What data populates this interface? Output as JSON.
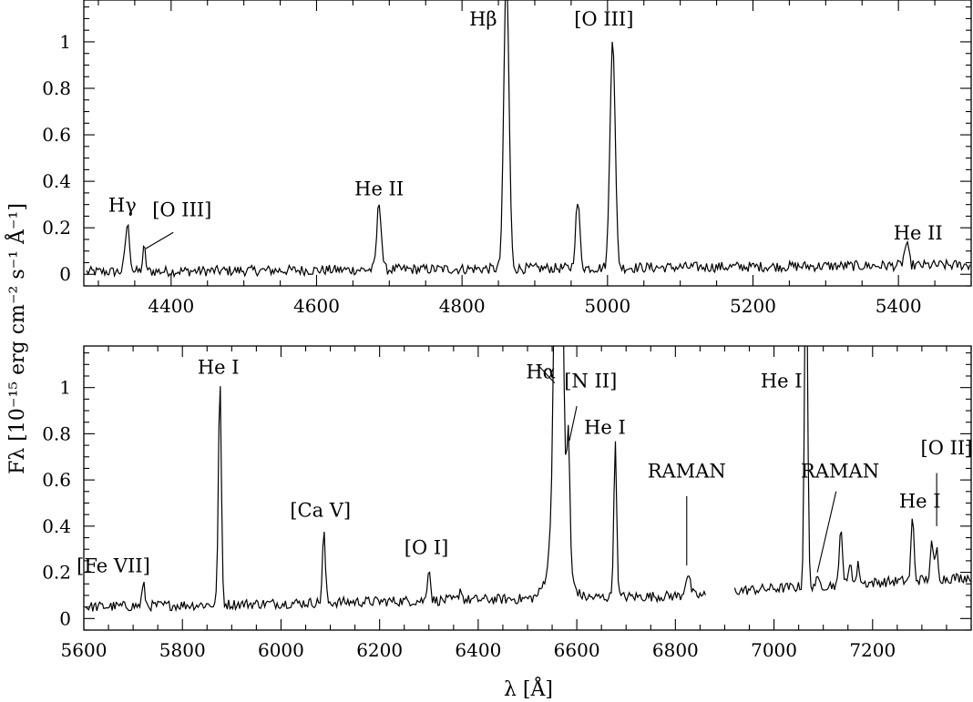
{
  "figure": {
    "ylabel": "Fλ [10⁻¹⁵ erg cm⁻² s⁻¹ Å⁻¹]",
    "xlabel": "λ [Å]"
  },
  "chart_data": [
    {
      "type": "line",
      "xlim": [
        4280,
        5500
      ],
      "ylim": [
        -0.05,
        1.18
      ],
      "x_ticks": [
        4400,
        4600,
        4800,
        5000,
        5200,
        5400
      ],
      "y_ticks": [
        0,
        0.2,
        0.4,
        0.6,
        0.8,
        1
      ],
      "x_tick_labels": [
        "4400",
        "4600",
        "4800",
        "5000",
        "5200",
        "5400"
      ],
      "y_tick_labels": [
        "0",
        "0.2",
        "0.4",
        "0.6",
        "0.8",
        "1"
      ],
      "continuum": {
        "x": [
          4280,
          5500
        ],
        "y": [
          0.01,
          0.04
        ]
      },
      "lines": [
        {
          "label": "Hγ",
          "wavelength": 4340,
          "peak": 0.2,
          "width": 3
        },
        {
          "label": "[O III]",
          "wavelength": 4363,
          "peak": 0.1,
          "width": 2
        },
        {
          "label": "He II",
          "wavelength": 4686,
          "peak": 0.29,
          "width": 3
        },
        {
          "label": "Hβ",
          "wavelength": 4861,
          "peak": 1.3,
          "width": 3.5
        },
        {
          "label": "",
          "wavelength": 4959,
          "peak": 0.28,
          "width": 3
        },
        {
          "label": "[O III]",
          "wavelength": 5007,
          "peak": 1.0,
          "width": 3.5
        },
        {
          "label": "He II",
          "wavelength": 5411,
          "peak": 0.09,
          "width": 3
        }
      ],
      "annotations": [
        {
          "text": "Hγ",
          "x": 4333,
          "y": 0.27
        },
        {
          "text": "[O III]",
          "x": 4415,
          "y": 0.25
        },
        {
          "text": "He II",
          "x": 4686,
          "y": 0.34
        },
        {
          "text": "Hβ",
          "x": 4829,
          "y": 1.07
        },
        {
          "text": "[O III]",
          "x": 4995,
          "y": 1.07
        },
        {
          "text": "He II",
          "x": 5427,
          "y": 0.15
        }
      ]
    },
    {
      "type": "line",
      "xlim": [
        5600,
        7400
      ],
      "ylim": [
        -0.05,
        1.18
      ],
      "x_ticks": [
        5600,
        5800,
        6000,
        6200,
        6400,
        6600,
        6800,
        7000,
        7200
      ],
      "y_ticks": [
        0,
        0.2,
        0.4,
        0.6,
        0.8,
        1
      ],
      "x_tick_labels": [
        "5600",
        "5800",
        "6000",
        "6200",
        "6400",
        "6600",
        "6800",
        "7000",
        "7200"
      ],
      "y_tick_labels": [
        "0",
        "0.2",
        "0.4",
        "0.6",
        "0.8",
        "1"
      ],
      "continuum": {
        "x": [
          5600,
          6860,
          6920,
          7400
        ],
        "y": [
          0.05,
          0.1,
          0.12,
          0.18
        ]
      },
      "gap": [
        6862,
        6918
      ],
      "lines": [
        {
          "label": "[Fe VII]",
          "wavelength": 5721,
          "peak": 0.09,
          "width": 3
        },
        {
          "label": "He I",
          "wavelength": 5876,
          "peak": 0.96,
          "width": 3
        },
        {
          "label": "[Ca V]",
          "wavelength": 6087,
          "peak": 0.3,
          "width": 3
        },
        {
          "label": "[O I]",
          "wavelength": 6300,
          "peak": 0.15,
          "width": 3
        },
        {
          "label": "",
          "wavelength": 6364,
          "peak": 0.05,
          "width": 3
        },
        {
          "label": "Hα",
          "wavelength": 6563,
          "peak": 2.5,
          "width": 7
        },
        {
          "label": "[N II]",
          "wavelength": 6583,
          "peak": 0.55,
          "width": 3
        },
        {
          "label": "He I",
          "wavelength": 6678,
          "peak": 0.66,
          "width": 3
        },
        {
          "label": "RAMAN",
          "wavelength": 6825,
          "peak": 0.09,
          "width": 5
        },
        {
          "label": "He I",
          "wavelength": 7065,
          "peak": 1.6,
          "width": 3
        },
        {
          "label": "RAMAN",
          "wavelength": 7088,
          "peak": 0.02,
          "width": 5
        },
        {
          "label": "",
          "wavelength": 7136,
          "peak": 0.26,
          "width": 3
        },
        {
          "label": "",
          "wavelength": 7155,
          "peak": 0.1,
          "width": 3
        },
        {
          "label": "",
          "wavelength": 7171,
          "peak": 0.08,
          "width": 3
        },
        {
          "label": "He I",
          "wavelength": 7281,
          "peak": 0.27,
          "width": 3
        },
        {
          "label": "[O II]",
          "wavelength": 7320,
          "peak": 0.15,
          "width": 3
        },
        {
          "label": "",
          "wavelength": 7330,
          "peak": 0.13,
          "width": 3
        }
      ],
      "annotations": [
        {
          "text": "[Fe VII]",
          "x": 5660,
          "y": 0.2
        },
        {
          "text": "He I",
          "x": 5873,
          "y": 1.06
        },
        {
          "text": "[Ca V]",
          "x": 6080,
          "y": 0.44
        },
        {
          "text": "[O I]",
          "x": 6295,
          "y": 0.28
        },
        {
          "text": "Hα",
          "x": 6527,
          "y": 1.04
        },
        {
          "text": "[N II]",
          "x": 6628,
          "y": 1.0
        },
        {
          "text": "He I",
          "x": 6657,
          "y": 0.8
        },
        {
          "text": "RAMAN",
          "x": 6823,
          "y": 0.61
        },
        {
          "text": "He I",
          "x": 7015,
          "y": 1.0
        },
        {
          "text": "RAMAN",
          "x": 7134,
          "y": 0.61
        },
        {
          "text": "He I",
          "x": 7296,
          "y": 0.48
        },
        {
          "text": "[O II]",
          "x": 7350,
          "y": 0.71
        }
      ]
    }
  ]
}
